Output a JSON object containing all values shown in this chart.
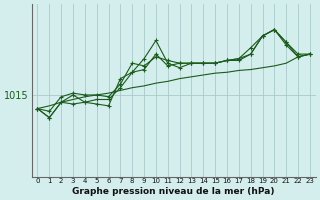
{
  "title": "Graphe pression niveau de la mer (hPa)",
  "background_color": "#d4eeee",
  "grid_color": "#aacaca",
  "line_color": "#1a5c1a",
  "x_labels": [
    "0",
    "1",
    "2",
    "3",
    "4",
    "5",
    "6",
    "7",
    "8",
    "9",
    "10",
    "11",
    "12",
    "13",
    "14",
    "15",
    "16",
    "17",
    "18",
    "19",
    "20",
    "21",
    "22",
    "23"
  ],
  "ytick_label": "1015",
  "ytick_value": 1015,
  "ylim": [
    1006,
    1025
  ],
  "series_with_markers": [
    [
      1013.5,
      1012.5,
      1014.2,
      1014.0,
      1014.2,
      1014.0,
      1013.8,
      1016.8,
      1017.5,
      1019.0,
      1021.0,
      1018.5,
      1018.0,
      1018.5,
      1018.5,
      1018.5,
      1018.8,
      1018.8,
      1019.5,
      1021.5,
      1022.2,
      1020.5,
      1019.2,
      1019.5
    ],
    [
      1013.5,
      1012.5,
      1014.2,
      1015.0,
      1014.2,
      1014.5,
      1014.5,
      1015.8,
      1017.5,
      1017.8,
      1019.5,
      1018.2,
      1018.5,
      1018.5,
      1018.5,
      1018.5,
      1018.8,
      1019.0,
      1019.5,
      1021.5,
      1022.2,
      1020.8,
      1019.2,
      1019.5
    ],
    [
      1013.5,
      1013.2,
      1014.8,
      1015.2,
      1015.0,
      1015.0,
      1014.8,
      1016.2,
      1018.5,
      1018.2,
      1019.2,
      1018.8,
      1018.5,
      1018.5,
      1018.5,
      1018.5,
      1018.8,
      1019.0,
      1020.2,
      1021.5,
      1022.2,
      1020.8,
      1019.5,
      1019.5
    ]
  ],
  "series_smooth": [
    1013.5,
    1013.8,
    1014.2,
    1014.5,
    1014.8,
    1015.0,
    1015.2,
    1015.5,
    1015.8,
    1016.0,
    1016.3,
    1016.5,
    1016.8,
    1017.0,
    1017.2,
    1017.4,
    1017.5,
    1017.7,
    1017.8,
    1018.0,
    1018.2,
    1018.5,
    1019.2,
    1019.5
  ]
}
